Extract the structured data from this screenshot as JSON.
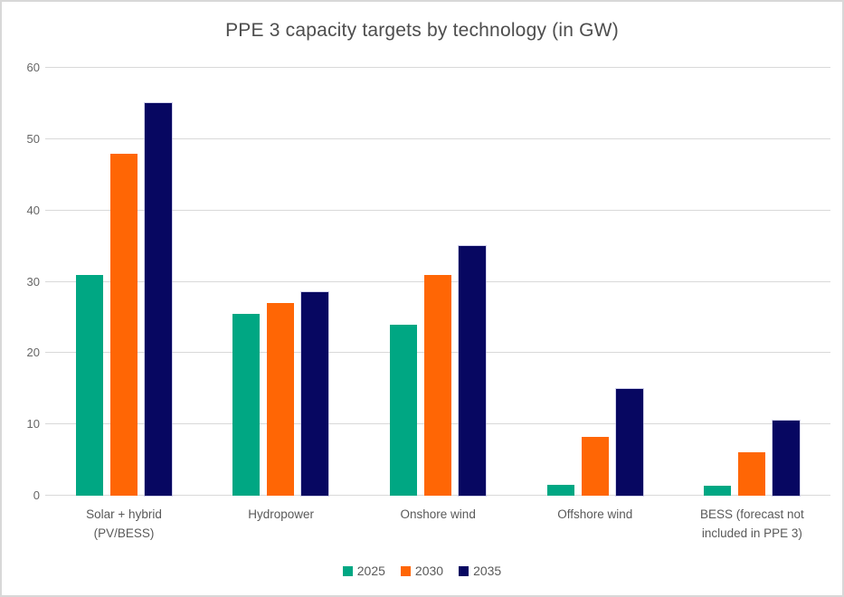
{
  "window": {
    "background": "#ffffff",
    "border_color": "#d8d8d8"
  },
  "chart_data": {
    "type": "bar",
    "title": "PPE 3 capacity targets by technology (in GW)",
    "categories": [
      "Solar + hybrid (PV/BESS)",
      "Hydropower",
      "Onshore wind",
      "Offshore wind",
      "BESS (forecast not included in PPE 3)"
    ],
    "series": [
      {
        "name": "2025",
        "color": "#00a783",
        "values": [
          31,
          25.5,
          24,
          1.5,
          1.4
        ]
      },
      {
        "name": "2030",
        "color": "#ff6605",
        "values": [
          48,
          27,
          31,
          8.3,
          6.1
        ]
      },
      {
        "name": "2035",
        "color": "#070761",
        "values": [
          55,
          28.5,
          35,
          15,
          10.5
        ]
      }
    ],
    "xlabel": "",
    "ylabel": "",
    "y_axis": {
      "min": 0,
      "max": 60,
      "tick_step": 10,
      "tick_labels": [
        "0",
        "10",
        "20",
        "30",
        "40",
        "50",
        "60"
      ]
    },
    "grid": true,
    "legend_position": "bottom"
  },
  "colors": {
    "gridline": "#d9d9d9",
    "axis_text": "#595959",
    "title_text": "#4d4d4d"
  }
}
